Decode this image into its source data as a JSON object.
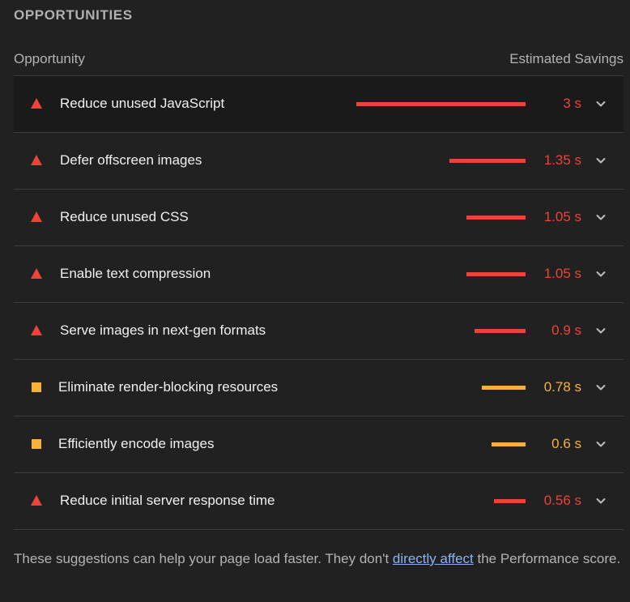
{
  "section": {
    "title": "OPPORTUNITIES"
  },
  "columns": {
    "opportunity": "Opportunity",
    "savings": "Estimated Savings"
  },
  "colors": {
    "fail": "#eb4438",
    "average": "#f6b13b"
  },
  "opportunities": [
    {
      "label": "Reduce unused JavaScript",
      "value": "3 s",
      "seconds": 3,
      "severity": "fail",
      "icon": "warning-triangle-icon"
    },
    {
      "label": "Defer offscreen images",
      "value": "1.35 s",
      "seconds": 1.35,
      "severity": "fail",
      "icon": "warning-triangle-icon"
    },
    {
      "label": "Reduce unused CSS",
      "value": "1.05 s",
      "seconds": 1.05,
      "severity": "fail",
      "icon": "warning-triangle-icon"
    },
    {
      "label": "Enable text compression",
      "value": "1.05 s",
      "seconds": 1.05,
      "severity": "fail",
      "icon": "warning-triangle-icon"
    },
    {
      "label": "Serve images in next-gen formats",
      "value": "0.9 s",
      "seconds": 0.9,
      "severity": "fail",
      "icon": "warning-triangle-icon"
    },
    {
      "label": "Eliminate render-blocking resources",
      "value": "0.78 s",
      "seconds": 0.78,
      "severity": "average",
      "icon": "warning-square-icon"
    },
    {
      "label": "Efficiently encode images",
      "value": "0.6 s",
      "seconds": 0.6,
      "severity": "average",
      "icon": "warning-square-icon"
    },
    {
      "label": "Reduce initial server response time",
      "value": "0.56 s",
      "seconds": 0.56,
      "severity": "fail",
      "icon": "warning-triangle-icon"
    }
  ],
  "footer": {
    "text_before": "These suggestions can help your page load faster. They don't ",
    "link": "directly affect",
    "text_after": " the Performance score."
  }
}
